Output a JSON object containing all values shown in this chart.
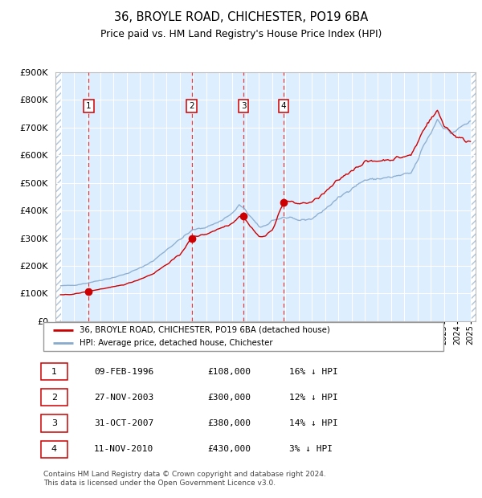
{
  "title": "36, BROYLE ROAD, CHICHESTER, PO19 6BA",
  "subtitle": "Price paid vs. HM Land Registry's House Price Index (HPI)",
  "ylabel_max": 900000,
  "yticks": [
    0,
    100000,
    200000,
    300000,
    400000,
    500000,
    600000,
    700000,
    800000,
    900000
  ],
  "xlim_start": 1993.6,
  "xlim_end": 2025.4,
  "purchases": [
    {
      "year": 1996.11,
      "price": 108000,
      "label": "1"
    },
    {
      "year": 2003.91,
      "price": 300000,
      "label": "2"
    },
    {
      "year": 2007.83,
      "price": 380000,
      "label": "3"
    },
    {
      "year": 2010.86,
      "price": 430000,
      "label": "4"
    }
  ],
  "sale_color": "#cc0000",
  "hpi_color": "#88aacc",
  "legend_sale": "36, BROYLE ROAD, CHICHESTER, PO19 6BA (detached house)",
  "legend_hpi": "HPI: Average price, detached house, Chichester",
  "table_rows": [
    {
      "num": "1",
      "date": "09-FEB-1996",
      "price": "£108,000",
      "hpi": "16% ↓ HPI"
    },
    {
      "num": "2",
      "date": "27-NOV-2003",
      "price": "£300,000",
      "hpi": "12% ↓ HPI"
    },
    {
      "num": "3",
      "date": "31-OCT-2007",
      "price": "£380,000",
      "hpi": "14% ↓ HPI"
    },
    {
      "num": "4",
      "date": "11-NOV-2010",
      "price": "£430,000",
      "hpi": "3% ↓ HPI"
    }
  ],
  "footer": "Contains HM Land Registry data © Crown copyright and database right 2024.\nThis data is licensed under the Open Government Licence v3.0.",
  "bg_color": "#ddeeff",
  "grid_color": "white",
  "hatch_color": "#b0c4d8"
}
